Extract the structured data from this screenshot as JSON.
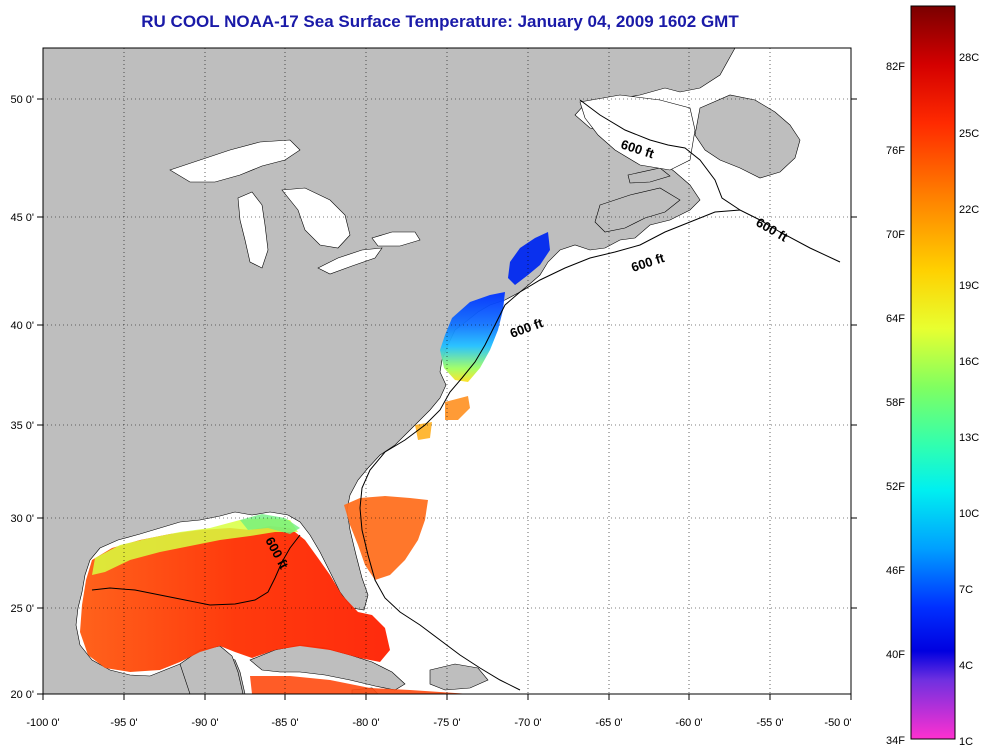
{
  "title": "RU COOL  NOAA-17  Sea Surface Temperature:  January 04, 2009 1602 GMT",
  "lon_labels": [
    "-100 0'",
    "-95 0'",
    "-90 0'",
    "-85 0'",
    "-80 0'",
    "-75 0'",
    "-70 0'",
    "-65 0'",
    "-60 0'",
    "-55 0'",
    "-50 0'"
  ],
  "lat_labels": [
    "50 0'",
    "45 0'",
    "40 0'",
    "35 0'",
    "30 0'",
    "25 0'",
    "20 0'"
  ],
  "isobath_label": "600 ft",
  "colorbar": {
    "fahrenheit": [
      "82F",
      "76F",
      "70F",
      "64F",
      "58F",
      "52F",
      "46F",
      "40F",
      "34F"
    ],
    "celsius": [
      "28C",
      "25C",
      "22C",
      "19C",
      "16C",
      "13C",
      "10C",
      "7C",
      "4C",
      "1C"
    ]
  },
  "colors": {
    "land": "#bebebe",
    "water": "#ffffff",
    "title": "#1a1aa8"
  }
}
